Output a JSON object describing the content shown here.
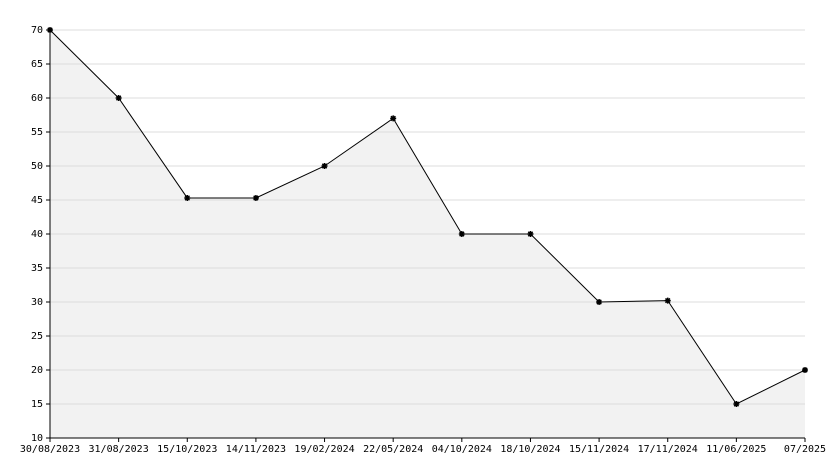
{
  "chart_data": {
    "type": "area",
    "categories": [
      "30/08/2023",
      "31/08/2023",
      "15/10/2023",
      "14/11/2023",
      "19/02/2024",
      "22/05/2024",
      "04/10/2024",
      "18/10/2024",
      "15/11/2024",
      "17/11/2024",
      "11/06/2025",
      "07/2025"
    ],
    "values": [
      70,
      60,
      45.3,
      45.3,
      50,
      57,
      40,
      40,
      30,
      30.2,
      15,
      20
    ],
    "color": "#000000",
    "fill": "#f2f2f2",
    "ylim": [
      10,
      70
    ],
    "yticks": [
      10,
      15,
      20,
      25,
      30,
      35,
      40,
      45,
      50,
      55,
      60,
      65,
      70
    ],
    "grid": true
  }
}
